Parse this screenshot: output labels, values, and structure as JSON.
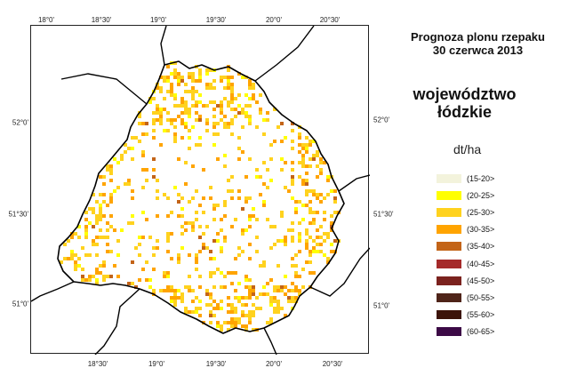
{
  "title": {
    "line1": "Prognoza plonu rzepaku",
    "line2": "30 czerwca 2013"
  },
  "region": {
    "line1": "województwo",
    "line2": "łódzkie"
  },
  "legend": {
    "unit": "dt/ha",
    "items": [
      {
        "label": "(15-20>",
        "color": "#f3f3dc"
      },
      {
        "label": "(20-25>",
        "color": "#ffff00"
      },
      {
        "label": "(25-30>",
        "color": "#ffd21e"
      },
      {
        "label": "(30-35>",
        "color": "#ffa400"
      },
      {
        "label": "(35-40>",
        "color": "#c36418"
      },
      {
        "label": "(40-45>",
        "color": "#a52a2a"
      },
      {
        "label": "(45-50>",
        "color": "#7b221e"
      },
      {
        "label": "(50-55>",
        "color": "#4f2419"
      },
      {
        "label": "(55-60>",
        "color": "#3c1409"
      },
      {
        "label": "(60-65>",
        "color": "#3c0a46"
      }
    ]
  },
  "graticule": {
    "longitudes": [
      "18°0'",
      "18°30'",
      "19°0'",
      "19°30'",
      "20°0'",
      "20°30'"
    ],
    "latitudes": [
      "52°0'",
      "51°30'",
      "51°0'"
    ]
  }
}
